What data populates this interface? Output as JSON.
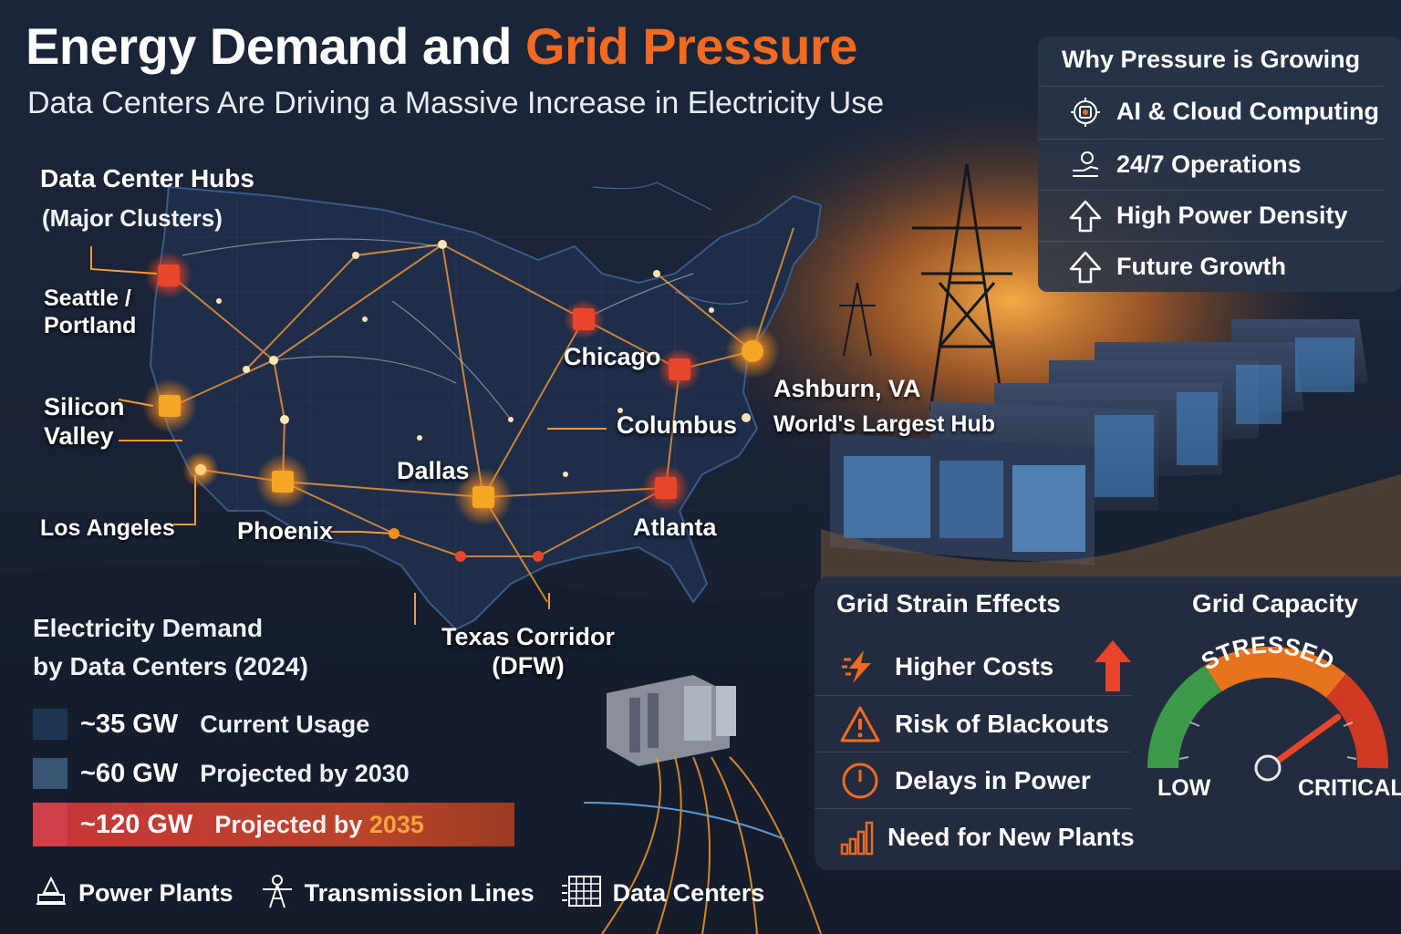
{
  "header": {
    "title_main": "Energy Demand and ",
    "title_accent": "Grid Pressure",
    "subtitle": "Data Centers Are Driving a Massive Increase in Electricity Use"
  },
  "map": {
    "hubs_title": "Data Center Hubs",
    "hubs_subtitle": "(Major Clusters)",
    "hubs": {
      "seattle_line1": "Seattle /",
      "seattle_line2": "Portland",
      "silicon_line1": "Silicon",
      "silicon_line2": "Valley",
      "los_angeles": "Los Angeles",
      "phoenix": "Phoenix",
      "dallas": "Dallas",
      "chicago": "Chicago",
      "columbus": "Columbus",
      "atlanta": "Atlanta",
      "ashburn": "Ashburn, VA",
      "ashburn_note": "World's Largest Hub",
      "texas_line1": "Texas Corridor",
      "texas_line2": "(DFW)"
    }
  },
  "why_panel": {
    "title": "Why Pressure is Growing",
    "items": [
      {
        "icon": "ai-chip-icon",
        "label": "AI & Cloud Computing"
      },
      {
        "icon": "operations-icon",
        "label": "24/7 Operations"
      },
      {
        "icon": "up-arrow-icon",
        "label": "High Power Density"
      },
      {
        "icon": "up-arrow-icon",
        "label": "Future Growth"
      }
    ]
  },
  "strain_panel": {
    "title": "Grid Strain Effects",
    "items": [
      {
        "icon": "lightning-icon",
        "label": "Higher Costs"
      },
      {
        "icon": "warning-icon",
        "label": "Risk of Blackouts"
      },
      {
        "icon": "clock-icon",
        "label": "Delays in Power"
      },
      {
        "icon": "bar-chart-icon",
        "label": "Need for New Plants"
      }
    ]
  },
  "capacity": {
    "title": "Grid Capacity",
    "status": "STRESSED",
    "low_label": "LOW",
    "critical_label": "CRITICAL",
    "level": 0.8,
    "colors": {
      "low": "#3a9a4a",
      "mid": "#e8731f",
      "high": "#d03a22"
    }
  },
  "demand": {
    "title_line1": "Electricity Demand",
    "title_line2": "by Data Centers (2024)",
    "rows": [
      {
        "value": "~35 GW",
        "label": "Current Usage",
        "color": "#1d3550"
      },
      {
        "value": "~60 GW",
        "label": "Projected by 2030",
        "color": "#3a5573"
      },
      {
        "value": "~120 GW",
        "label_prefix": "Projected by ",
        "label_year": "2035",
        "color": "#d0404a"
      }
    ]
  },
  "legend": {
    "power_plants": "Power Plants",
    "transmission_lines": "Transmission Lines",
    "data_centers": "Data Centers"
  },
  "colors": {
    "accent": "#f26a22",
    "background": "#1a2335",
    "hub_red": "#e8452a",
    "hub_orange": "#f5a623"
  }
}
